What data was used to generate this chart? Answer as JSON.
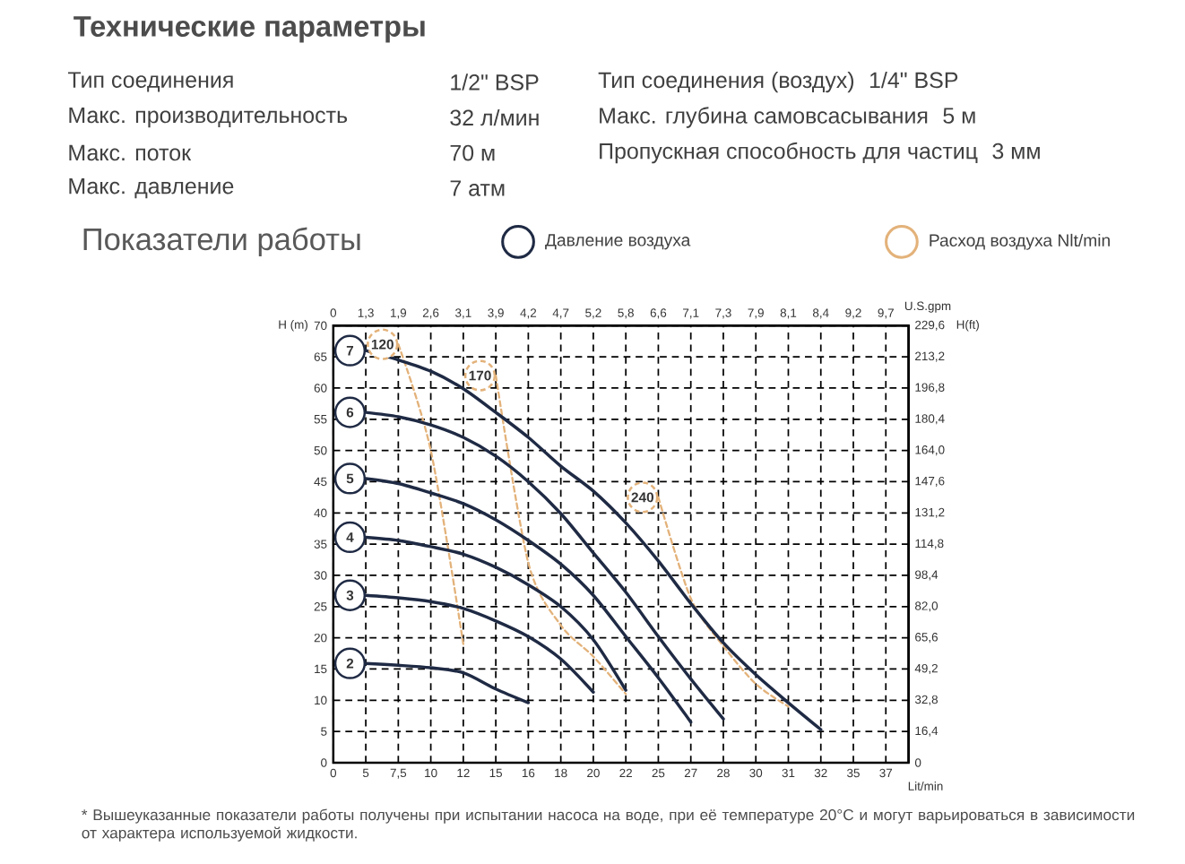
{
  "chart_data": {
    "type": "line",
    "title": "Технические параметры",
    "subtitle": "Показатели работы",
    "xlabel": "Lit/min",
    "ylabel": "H (m)",
    "y2label": "H(ft)",
    "categories": [
      "0",
      "5",
      "7,5",
      "10",
      "12",
      "15",
      "16",
      "18",
      "20",
      "22",
      "25",
      "27",
      "28",
      "30",
      "31",
      "32",
      "35",
      "37"
    ],
    "legend": "top",
    "ylim": [
      0,
      70
    ],
    "yticks": [
      0,
      5,
      10,
      15,
      20,
      25,
      30,
      35,
      40,
      45,
      50,
      55,
      60,
      65,
      70
    ],
    "y2lim": [
      0,
      229.6
    ],
    "y2ticks": [
      0,
      {
        "value": 16.4,
        "label": "16,4"
      },
      {
        "value": 32.8,
        "label": "32,8"
      },
      {
        "value": 49.2,
        "label": "49,2"
      },
      {
        "value": 65.6,
        "label": "65,6"
      },
      {
        "value": 82.0,
        "label": "82,0"
      },
      {
        "value": 98.4,
        "label": "98,4"
      },
      {
        "value": 114.8,
        "label": "114,8"
      },
      {
        "value": 131.2,
        "label": "131,2"
      },
      {
        "value": 147.6,
        "label": "147,6"
      },
      {
        "value": 164.0,
        "label": "164,0"
      },
      {
        "value": 180.4,
        "label": "180,4"
      },
      {
        "value": 196.8,
        "label": "196,8"
      },
      {
        "value": 213.2,
        "label": "213,2"
      },
      {
        "value": 229.6,
        "label": "229,6"
      }
    ],
    "grid": true,
    "series": [
      {
        "name": "7",
        "color": "#1f2a44",
        "line_style": "solid",
        "values": [
          null,
          66,
          64.5,
          62.7,
          59.9,
          56.1,
          52.1,
          47.5,
          43.5,
          38.4,
          32.3,
          25.5,
          19.2,
          14.1,
          9.6,
          5.3,
          null,
          null
        ]
      },
      {
        "name": "6",
        "color": "#1f2a44",
        "line_style": "solid",
        "values": [
          null,
          56.1,
          55.4,
          54.1,
          52.1,
          49.1,
          45,
          39.9,
          33.6,
          27.3,
          20.2,
          13.4,
          7,
          null,
          null,
          null,
          null,
          null
        ]
      },
      {
        "name": "5",
        "color": "#1f2a44",
        "line_style": "solid",
        "values": [
          null,
          45.5,
          44.7,
          43.2,
          41.5,
          38.9,
          35.6,
          31.8,
          26.8,
          20.2,
          13.6,
          6.5,
          null,
          null,
          null,
          null,
          null,
          null
        ]
      },
      {
        "name": "4",
        "color": "#1f2a44",
        "line_style": "solid",
        "values": [
          null,
          36.1,
          35.6,
          34.6,
          33.4,
          31.3,
          28.5,
          25,
          19.7,
          11.6,
          null,
          null,
          null,
          null,
          null,
          null,
          null,
          null
        ]
      },
      {
        "name": "3",
        "color": "#1f2a44",
        "line_style": "solid",
        "values": [
          null,
          26.8,
          26.4,
          25.8,
          24.7,
          22.7,
          20.2,
          16.6,
          11.3,
          null,
          null,
          null,
          null,
          null,
          null,
          null,
          null,
          null
        ]
      },
      {
        "name": "2",
        "color": "#1f2a44",
        "line_style": "solid",
        "values": [
          null,
          15.9,
          15.6,
          15.2,
          14.4,
          11.8,
          9.6,
          null,
          null,
          null,
          null,
          null,
          null,
          null,
          null,
          null,
          null,
          null
        ]
      },
      {
        "name": "120",
        "color": "#e3b27a",
        "line_style": "dashed",
        "values": [
          null,
          null,
          67,
          50,
          19,
          null,
          null,
          null,
          null,
          null,
          null,
          null,
          null,
          null,
          null,
          null,
          null,
          null
        ]
      },
      {
        "name": "170",
        "color": "#e3b27a",
        "line_style": "dashed",
        "values": [
          null,
          null,
          null,
          null,
          null,
          62,
          32,
          22,
          17,
          11,
          null,
          null,
          null,
          null,
          null,
          null,
          null,
          null
        ]
      },
      {
        "name": "240",
        "color": "#e3b27a",
        "line_style": "dashed",
        "values": [
          null,
          null,
          null,
          null,
          null,
          null,
          null,
          null,
          null,
          null,
          42.5,
          26.3,
          18.7,
          12.6,
          9,
          null,
          null,
          null
        ]
      }
    ],
    "annotations": [
      "Тип соединения",
      "1/2\" BSP",
      "Тип соединения (воздух)",
      "1/4\" BSP",
      "Макс. производительность",
      "32  л/мин",
      "Макс. глубина самовсасывания",
      "5 м",
      "Макс. поток",
      "70 м",
      "Пропускная способность для частиц",
      "3 мм",
      "Макс. давление",
      "7 атм",
      "Давление воздуха",
      "Расход воздуха Nlt/min",
      "* Вышеуказанные показатели работы получены при испытании насоса на воде, при её температуре 20°C и могут варьироваться в зависимости от характера используемой жидкости.",
      "0",
      "1,3",
      "1,9",
      "2,6",
      "3,1",
      "3,9",
      "4,2",
      "4,7",
      "5,2",
      "5,8",
      "6,6",
      "7,1",
      "7,3",
      "7,9",
      "8,1",
      "8,4",
      "9,2",
      "9,7",
      "U.S.gpm"
    ]
  }
}
